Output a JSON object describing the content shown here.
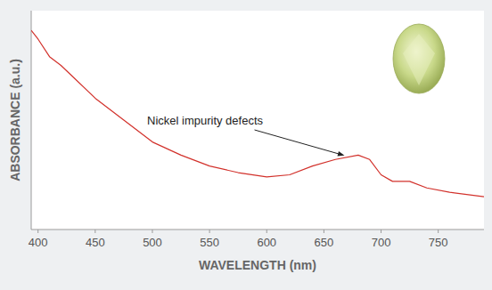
{
  "chart_data": {
    "type": "line",
    "xlabel": "WAVELENGTH (nm)",
    "ylabel": "ABSORBANCE (a.u.)",
    "x": [
      394,
      400,
      410,
      420,
      430,
      450,
      475,
      500,
      525,
      550,
      575,
      600,
      620,
      640,
      660,
      680,
      690,
      700,
      710,
      725,
      740,
      760,
      790
    ],
    "series": [
      {
        "name": "Absorbance",
        "color": "#d2312b",
        "values": [
          91,
          87,
          79,
          75,
          70,
          60,
          50,
          40,
          34,
          29,
          26,
          24,
          25,
          29,
          32,
          34,
          32,
          25,
          22,
          22,
          19,
          17,
          15
        ]
      }
    ],
    "xlim": [
      394,
      790
    ],
    "xticks": [
      400,
      450,
      500,
      550,
      600,
      650,
      700,
      750
    ],
    "ylim": [
      0,
      100
    ],
    "tick_labels": "x",
    "grid": false,
    "annotations": [
      {
        "text": "Nickel impurity defects",
        "x": 668,
        "y": 33
      }
    ]
  }
}
